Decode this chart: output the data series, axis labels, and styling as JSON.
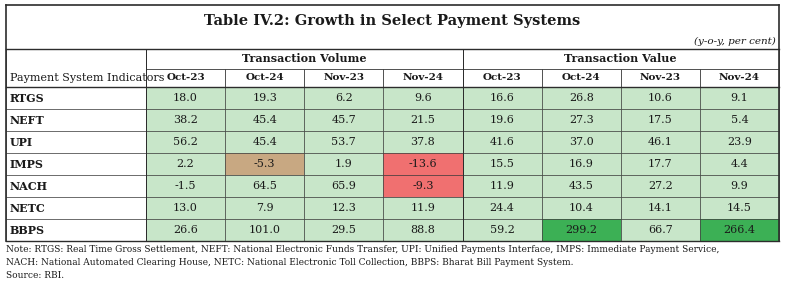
{
  "title": "Table IV.2: Growth in Select Payment Systems",
  "subtitle": "(y-o-y, per cent)",
  "header_label": "Payment System Indicators",
  "col_group_labels": [
    "Transaction Volume",
    "Transaction Value"
  ],
  "sub_headers": [
    "Oct-23",
    "Oct-24",
    "Nov-23",
    "Nov-24",
    "Oct-23",
    "Oct-24",
    "Nov-23",
    "Nov-24"
  ],
  "row_labels": [
    "RTGS",
    "NEFT",
    "UPI",
    "IMPS",
    "NACH",
    "NETC",
    "BBPS"
  ],
  "data": [
    [
      18.0,
      19.3,
      6.2,
      9.6,
      16.6,
      26.8,
      10.6,
      9.1
    ],
    [
      38.2,
      45.4,
      45.7,
      21.5,
      19.6,
      27.3,
      17.5,
      5.4
    ],
    [
      56.2,
      45.4,
      53.7,
      37.8,
      41.6,
      37.0,
      46.1,
      23.9
    ],
    [
      2.2,
      -5.3,
      1.9,
      -13.6,
      15.5,
      16.9,
      17.7,
      4.4
    ],
    [
      -1.5,
      64.5,
      65.9,
      -9.3,
      11.9,
      43.5,
      27.2,
      9.9
    ],
    [
      13.0,
      7.9,
      12.3,
      11.9,
      24.4,
      10.4,
      14.1,
      14.5
    ],
    [
      26.6,
      101.0,
      29.5,
      88.8,
      59.2,
      299.2,
      66.7,
      266.4
    ]
  ],
  "cell_colors": [
    [
      "#c8e6c9",
      "#c8e6c9",
      "#c8e6c9",
      "#c8e6c9",
      "#c8e6c9",
      "#c8e6c9",
      "#c8e6c9",
      "#c8e6c9"
    ],
    [
      "#c8e6c9",
      "#c8e6c9",
      "#c8e6c9",
      "#c8e6c9",
      "#c8e6c9",
      "#c8e6c9",
      "#c8e6c9",
      "#c8e6c9"
    ],
    [
      "#c8e6c9",
      "#c8e6c9",
      "#c8e6c9",
      "#c8e6c9",
      "#c8e6c9",
      "#c8e6c9",
      "#c8e6c9",
      "#c8e6c9"
    ],
    [
      "#c8e6c9",
      "#c8a882",
      "#c8e6c9",
      "#f07070",
      "#c8e6c9",
      "#c8e6c9",
      "#c8e6c9",
      "#c8e6c9"
    ],
    [
      "#c8e6c9",
      "#c8e6c9",
      "#c8e6c9",
      "#f07070",
      "#c8e6c9",
      "#c8e6c9",
      "#c8e6c9",
      "#c8e6c9"
    ],
    [
      "#c8e6c9",
      "#c8e6c9",
      "#c8e6c9",
      "#c8e6c9",
      "#c8e6c9",
      "#c8e6c9",
      "#c8e6c9",
      "#c8e6c9"
    ],
    [
      "#c8e6c9",
      "#c8e6c9",
      "#c8e6c9",
      "#c8e6c9",
      "#c8e6c9",
      "#3cb055",
      "#c8e6c9",
      "#3cb055"
    ]
  ],
  "note_line1": "Note: RTGS: Real Time Gross Settlement, NEFT: National Electronic Funds Transfer, UPI: Unified Payments Interface, IMPS: Immediate Payment Service,",
  "note_line2": "NACH: National Automated Clearing House, NETC: National Electronic Toll Collection, BBPS: Bharat Bill Payment System.",
  "note_line3": "Source: RBI.",
  "bg_color": "#ffffff",
  "text_color": "#1a1a1a",
  "title_fontsize": 10.5,
  "subtitle_fontsize": 7.5,
  "header_fontsize": 8.0,
  "cell_fontsize": 8.0,
  "note_fontsize": 6.5
}
